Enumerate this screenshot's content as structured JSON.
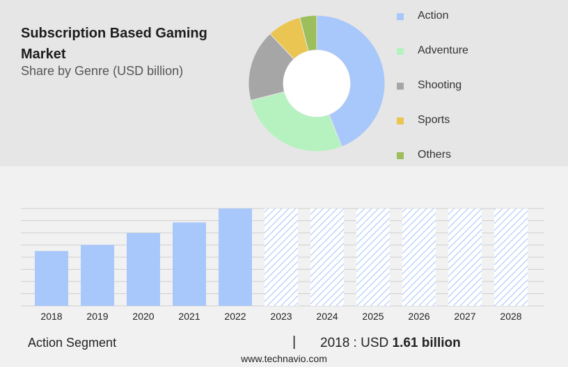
{
  "header": {
    "title": "Subscription Based Gaming Market",
    "subtitle": "Share by Genre (USD billion)"
  },
  "footer": {
    "segment_label": "Action Segment",
    "divider": "|",
    "stat_prefix": "2018 : USD",
    "stat_value": "1.61 billion",
    "url": "www.technavio.com"
  },
  "colors": {
    "action": "#a8c7fb",
    "adventure": "#b6f2c0",
    "shooting": "#a6a6a6",
    "sports": "#eac551",
    "others": "#9dbf5b",
    "forecast_hatch": "#a8c7fb"
  },
  "chart_data": [
    {
      "type": "pie",
      "style": "donut",
      "legend_position": "right",
      "series": [
        {
          "name": "Action",
          "value": 44,
          "color": "#a8c7fb"
        },
        {
          "name": "Adventure",
          "value": 27,
          "color": "#b6f2c0"
        },
        {
          "name": "Shooting",
          "value": 17,
          "color": "#a6a6a6"
        },
        {
          "name": "Sports",
          "value": 8,
          "color": "#eac551"
        },
        {
          "name": "Others",
          "value": 4,
          "color": "#9dbf5b"
        }
      ]
    },
    {
      "type": "bar",
      "categories": [
        "2018",
        "2019",
        "2020",
        "2021",
        "2022",
        "2023",
        "2024",
        "2025",
        "2026",
        "2027",
        "2028"
      ],
      "values": [
        1.61,
        1.79,
        2.14,
        2.45,
        2.86,
        2.86,
        2.86,
        2.86,
        2.86,
        2.86,
        2.86
      ],
      "forecast_from": "2023",
      "ylim": [
        0,
        2.86
      ],
      "grid": true,
      "y_axis_labels": false
    }
  ]
}
